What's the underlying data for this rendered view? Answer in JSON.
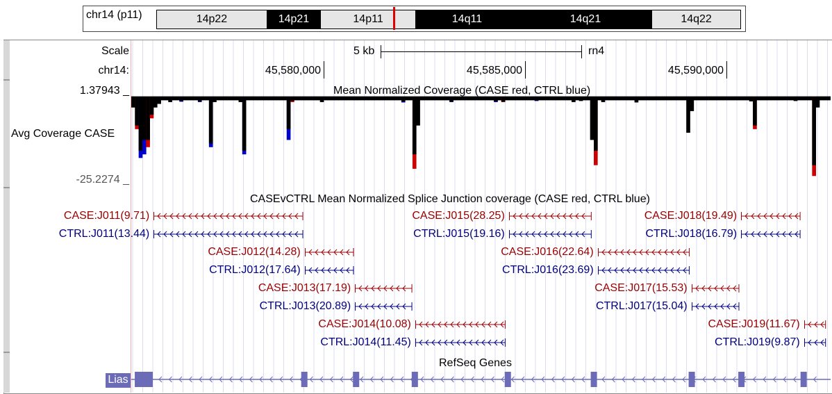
{
  "ideogram": {
    "chrom_label": "chr14 (p11)",
    "bands": [
      {
        "name": "14p22",
        "start": 0.0,
        "end": 0.188,
        "color": "#e6e6e6",
        "text_color": "#000000"
      },
      {
        "name": "14p21",
        "start": 0.188,
        "end": 0.281,
        "color": "#000000",
        "text_color": "#ffffff"
      },
      {
        "name": "14p11",
        "start": 0.281,
        "end": 0.443,
        "color": "#e6e6e6",
        "text_color": "#000000"
      },
      {
        "name": "14q11",
        "start": 0.443,
        "end": 0.62,
        "color": "#000000",
        "text_color": "#ffffff"
      },
      {
        "name": "14q21",
        "start": 0.62,
        "end": 0.849,
        "color": "#000000",
        "text_color": "#ffffff"
      },
      {
        "name": "14q22",
        "start": 0.849,
        "end": 1.0,
        "color": "#e6e6e6",
        "text_color": "#000000"
      }
    ],
    "marker_color": "#e00000"
  },
  "scale": {
    "label": "Scale",
    "size_label": "5 kb",
    "assembly": "rn4"
  },
  "ruler": {
    "chrom_label": "chr14:",
    "positions": [
      "45,580,000",
      "45,585,000",
      "45,590,000"
    ]
  },
  "coverage": {
    "max_label": "1.37943 _",
    "min_label": "-25.2274 _",
    "track_label": "Avg Coverage CASE",
    "title": "Mean Normalized Coverage (CASE red, CTRL blue)",
    "colors": {
      "case": "#cc0000",
      "ctrl": "#0000cc",
      "overlap": "#000000"
    }
  },
  "junctions": {
    "title": "CASEvCTRL Mean Normalized Splice Junction coverage (CASE red, CTRL blue)",
    "colors": {
      "case": "#990000",
      "ctrl": "#00007f"
    },
    "rows": [
      {
        "label": "CASE:J011(9.71)",
        "type": "case",
        "span": [
          0.032,
          0.245
        ]
      },
      {
        "label": "CTRL:J011(13.44)",
        "type": "ctrl",
        "span": [
          0.032,
          0.245
        ]
      },
      {
        "label": "CASE:J015(28.25)",
        "type": "case",
        "span": [
          0.54,
          0.657
        ]
      },
      {
        "label": "CTRL:J015(19.16)",
        "type": "ctrl",
        "span": [
          0.54,
          0.657
        ]
      },
      {
        "label": "CASE:J018(19.49)",
        "type": "case",
        "span": [
          0.872,
          0.956
        ]
      },
      {
        "label": "CTRL:J018(16.79)",
        "type": "ctrl",
        "span": [
          0.872,
          0.956
        ]
      },
      {
        "label": "CASE:J012(14.28)",
        "type": "case",
        "span": [
          0.248,
          0.317
        ]
      },
      {
        "label": "CTRL:J012(17.64)",
        "type": "ctrl",
        "span": [
          0.248,
          0.317
        ]
      },
      {
        "label": "CASE:J016(22.64)",
        "type": "case",
        "span": [
          0.667,
          0.797
        ]
      },
      {
        "label": "CTRL:J016(23.69)",
        "type": "ctrl",
        "span": [
          0.667,
          0.797
        ]
      },
      {
        "label": "CASE:J013(17.19)",
        "type": "case",
        "span": [
          0.32,
          0.401
        ]
      },
      {
        "label": "CTRL:J013(20.89)",
        "type": "ctrl",
        "span": [
          0.32,
          0.401
        ]
      },
      {
        "label": "CASE:J017(15.53)",
        "type": "case",
        "span": [
          0.801,
          0.868
        ]
      },
      {
        "label": "CTRL:J017(15.04)",
        "type": "ctrl",
        "span": [
          0.801,
          0.868
        ]
      },
      {
        "label": "CASE:J014(10.08)",
        "type": "case",
        "span": [
          0.406,
          0.534
        ]
      },
      {
        "label": "CTRL:J014(11.45)",
        "type": "ctrl",
        "span": [
          0.406,
          0.534
        ]
      },
      {
        "label": "CASE:J019(11.67)",
        "type": "case",
        "span": [
          0.962,
          0.992
        ]
      },
      {
        "label": "CTRL:J019(9.87)",
        "type": "ctrl",
        "span": [
          0.962,
          0.992
        ]
      }
    ]
  },
  "genes": {
    "title": "RefSeq Genes",
    "gene_label": "Lias",
    "color": "#6b6bb8",
    "exon_positions": [
      0.005,
      0.243,
      0.317,
      0.401,
      0.534,
      0.657,
      0.797,
      0.868,
      0.957
    ]
  },
  "chart_data": {
    "type": "bar",
    "title": "Mean Normalized Coverage (CASE red, CTRL blue)",
    "xlabel": "",
    "ylabel": "Avg Coverage CASE",
    "ylim": [
      -25.2274,
      1.37943
    ],
    "x_ticks": [
      "45,580,000",
      "45,585,000",
      "45,590,000"
    ],
    "series": [
      {
        "name": "CASE",
        "color": "#cc0000",
        "values": [
          -3,
          -9,
          -15,
          -12,
          -14,
          -6,
          -3,
          -2,
          -1,
          -1,
          -1.5,
          -1,
          -1,
          -1.2,
          -1,
          -1,
          -1,
          -1,
          -1.3,
          -1,
          -1,
          -13,
          -1.5,
          -1,
          -1,
          -1,
          -1,
          -1,
          -1,
          -1.5,
          -15,
          -1,
          -1,
          -1,
          -1,
          -1,
          -1,
          -1,
          -1,
          -1,
          -1,
          -1,
          -9,
          -1.5,
          -1,
          -1,
          -1,
          -1,
          -1,
          -1,
          -1,
          -1.5,
          -1,
          -1,
          -1,
          -1,
          -1,
          -1,
          -1,
          -1,
          -1,
          -1,
          -1,
          -1,
          -1,
          -1,
          -1,
          -1,
          -1,
          -1,
          -1,
          -1,
          -1,
          -1.4,
          -1,
          -1,
          -20,
          -8,
          -1,
          -1,
          -1,
          -1,
          -1,
          -1,
          -1,
          -1,
          -1.4,
          -1,
          -1,
          -1,
          -1,
          -1,
          -1,
          -1,
          -1,
          -1,
          -1,
          -1,
          -1.3,
          -1,
          -1.5,
          -1,
          -1,
          -1,
          -1,
          -1,
          -1,
          -1,
          -1,
          -1.1,
          -1,
          -1,
          -1,
          -1,
          -1,
          -1,
          -1,
          -1,
          -1,
          -1.5,
          -1,
          -1.2,
          -1,
          -1,
          -12,
          -19,
          -1,
          -1.5,
          -1,
          -1,
          -1,
          -1,
          -1,
          -1,
          -1,
          -1,
          -1.6,
          -1,
          -1,
          -1,
          -1,
          -1,
          -1,
          -1,
          -1,
          -1,
          -1,
          -1,
          -1,
          -1,
          -10,
          -4,
          -1,
          -1,
          -1,
          -1,
          -1,
          -1,
          -1,
          -1,
          -1,
          -1,
          -1,
          -1,
          -1,
          -1,
          -1,
          -1.3,
          -9,
          -1,
          -1,
          -1,
          -1,
          -1,
          -1,
          -1,
          -1,
          -1,
          -1,
          -1.2,
          -1,
          -1,
          -1,
          -1,
          -22,
          -3,
          -1,
          -1,
          -1
        ]
      },
      {
        "name": "CTRL",
        "color": "#0000cc",
        "values": [
          -3,
          -8,
          -17,
          -16,
          -12,
          -5,
          -3,
          -2,
          -1,
          -1,
          -1.5,
          -1,
          -1,
          -1.4,
          -1,
          -1,
          -1,
          -1,
          -1.5,
          -1,
          -1,
          -14,
          -1.5,
          -1,
          -1,
          -1,
          -1,
          -1,
          -1,
          -1.5,
          -16,
          -1,
          -1,
          -1,
          -1,
          -1,
          -1,
          -1,
          -1,
          -1,
          -1,
          -1,
          -12,
          -1.2,
          -1,
          -1,
          -1,
          -1,
          -1,
          -1,
          -1,
          -1.5,
          -1,
          -1,
          -1,
          -1,
          -1,
          -1,
          -1,
          -1,
          -1,
          -1,
          -1,
          -1,
          -1,
          -1,
          -1,
          -1,
          -1,
          -1,
          -1,
          -1,
          -1,
          -1.6,
          -1,
          -1,
          -16,
          -8,
          -1,
          -1,
          -1,
          -1,
          -1,
          -1,
          -1,
          -1,
          -1.5,
          -1,
          -1,
          -1,
          -1,
          -1,
          -1,
          -1,
          -1,
          -1,
          -1,
          -1,
          -1.5,
          -1,
          -1.4,
          -1,
          -1,
          -1,
          -1,
          -1,
          -1,
          -1,
          -1,
          -1.2,
          -1,
          -1,
          -1,
          -1,
          -1,
          -1,
          -1,
          -1,
          -1,
          -1.5,
          -1,
          -1.2,
          -1,
          -1,
          -12,
          -15,
          -1,
          -1.5,
          -1,
          -1,
          -1,
          -1,
          -1,
          -1,
          -1,
          -1,
          -1.6,
          -1,
          -1,
          -1,
          -1,
          -1,
          -1,
          -1,
          -1,
          -1,
          -1,
          -1,
          -1,
          -1,
          -10,
          -4,
          -1,
          -1,
          -1,
          -1,
          -1,
          -1,
          -1,
          -1,
          -1,
          -1,
          -1,
          -1,
          -1,
          -1,
          -1,
          -1.3,
          -8,
          -1,
          -1,
          -1,
          -1,
          -1,
          -1,
          -1,
          -1,
          -1,
          -1,
          -1.2,
          -1,
          -1,
          -1,
          -1,
          -19,
          -3,
          -1,
          -1,
          -1
        ]
      }
    ],
    "grid": true
  }
}
